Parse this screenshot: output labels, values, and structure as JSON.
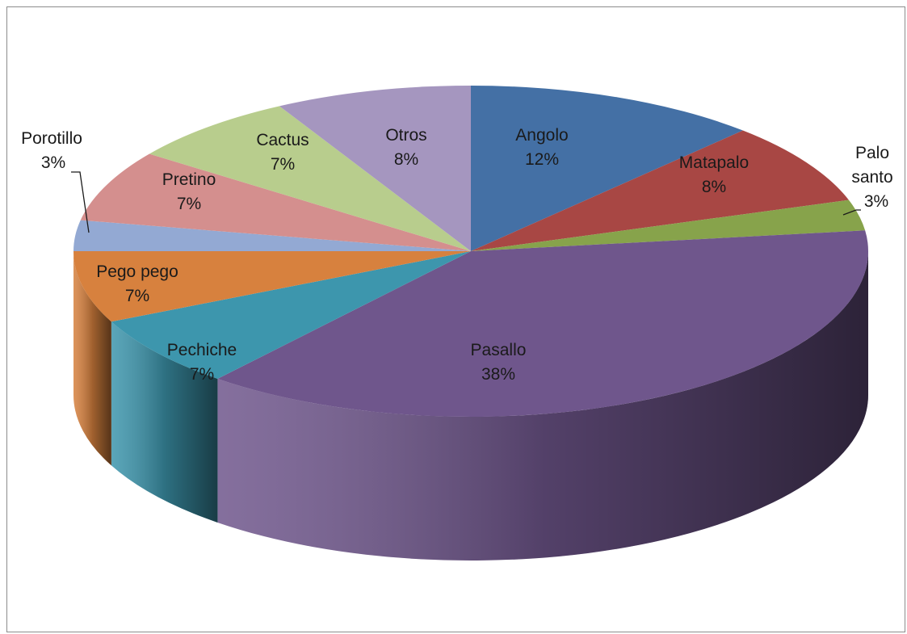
{
  "chart_data": {
    "type": "pie",
    "title": "",
    "style": "3d",
    "legend": "none",
    "slices": [
      {
        "label": "Angolo",
        "value": 12,
        "display": "12%",
        "color": "#4470a5"
      },
      {
        "label": "Matapalo",
        "value": 8,
        "display": "8%",
        "color": "#a84744"
      },
      {
        "label": "Palo santo",
        "value": 3,
        "display": "3%",
        "color": "#87a34b"
      },
      {
        "label": "Pasallo",
        "value": 38,
        "display": "38%",
        "color": "#6f568c"
      },
      {
        "label": "Pechiche",
        "value": 7,
        "display": "7%",
        "color": "#3d96ad"
      },
      {
        "label": "Pego pego",
        "value": 7,
        "display": "7%",
        "color": "#d7813e"
      },
      {
        "label": "Porotillo",
        "value": 3,
        "display": "3%",
        "color": "#93a9d3"
      },
      {
        "label": "Pretino",
        "value": 7,
        "display": "7%",
        "color": "#d48f8e"
      },
      {
        "label": "Cactus",
        "value": 7,
        "display": "7%",
        "color": "#b8cd8d"
      },
      {
        "label": "Otros",
        "value": 8,
        "display": "8%",
        "color": "#a596bf"
      }
    ]
  }
}
